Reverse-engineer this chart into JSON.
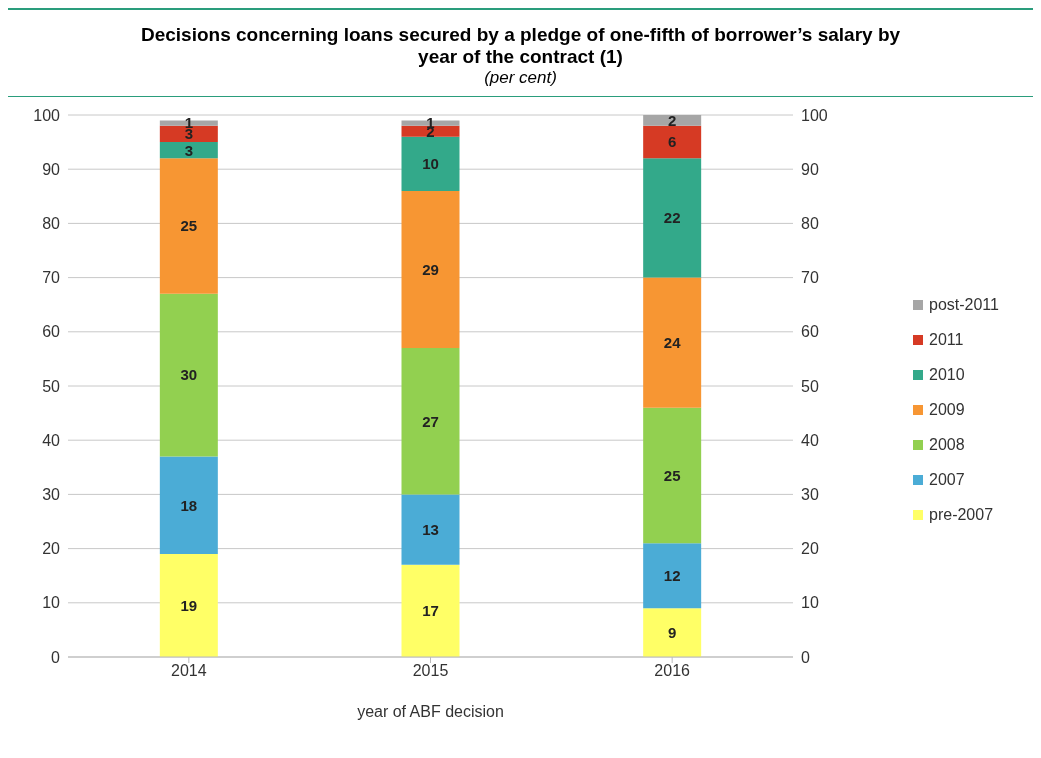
{
  "chart_data": {
    "type": "bar",
    "title": "Decisions concerning loans secured by a pledge of one-fifth of borrower’s salary by year of the contract (1)",
    "subtitle": "(per cent)",
    "xlabel": "year of ABF decision",
    "categories": [
      "2014",
      "2015",
      "2016"
    ],
    "stacked": true,
    "series": [
      {
        "name": "pre-2007",
        "color": "#ffff66",
        "values": [
          19,
          17,
          9
        ]
      },
      {
        "name": "2007",
        "color": "#4bacd6",
        "values": [
          18,
          13,
          12
        ]
      },
      {
        "name": "2008",
        "color": "#92d050",
        "values": [
          30,
          27,
          25
        ]
      },
      {
        "name": "2009",
        "color": "#f79633",
        "values": [
          25,
          29,
          24
        ]
      },
      {
        "name": "2010",
        "color": "#33a98a",
        "values": [
          3,
          10,
          22
        ]
      },
      {
        "name": "2011",
        "color": "#d63a24",
        "values": [
          3,
          2,
          6
        ]
      },
      {
        "name": "post-2011",
        "color": "#a6a6a6",
        "values": [
          1,
          1,
          2
        ]
      }
    ],
    "ylim": [
      0,
      100
    ],
    "yticks": [
      0,
      10,
      20,
      30,
      40,
      50,
      60,
      70,
      80,
      90,
      100
    ],
    "y2lim": [
      0,
      100
    ],
    "y2ticks": [
      0,
      10,
      20,
      30,
      40,
      50,
      60,
      70,
      80,
      90,
      100
    ],
    "grid": "y",
    "legend": "right",
    "data_labels": true
  }
}
